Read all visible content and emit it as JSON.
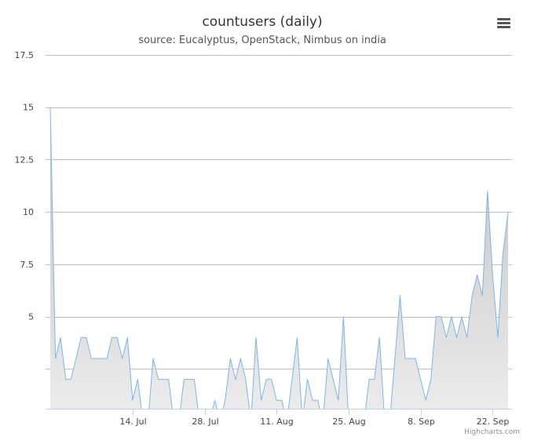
{
  "chart_data": {
    "type": "area",
    "title": "countusers (daily)",
    "subtitle": "source: Eucalyptus, OpenStack, Nimbus on india",
    "xlabel": "",
    "ylabel": "",
    "x_start": "2014-06-28",
    "x_step_days": 1,
    "x_tick_labels": [
      "14. Jul",
      "28. Jul",
      "11. Aug",
      "25. Aug",
      "8. Sep",
      "22. Sep"
    ],
    "x_tick_dates": [
      "2014-07-14",
      "2014-07-28",
      "2014-08-11",
      "2014-08-25",
      "2014-09-08",
      "2014-09-22"
    ],
    "y_tick_labels": [
      "5",
      "7.5",
      "10",
      "12.5",
      "15",
      "17.5"
    ],
    "y_ticks": [
      2.5,
      5,
      7.5,
      10,
      12.5,
      15,
      17.5
    ],
    "ylim": [
      0.6,
      17.5
    ],
    "grid": true,
    "legend": "none",
    "series": [
      {
        "values": [
          15,
          3,
          4,
          2,
          2,
          3,
          4,
          4,
          3,
          3,
          3,
          3,
          4,
          4,
          3,
          4,
          1,
          2,
          0,
          0,
          3,
          2,
          2,
          2,
          0,
          0,
          2,
          2,
          2,
          0,
          0,
          0,
          1,
          0,
          1,
          3,
          2,
          3,
          2,
          0,
          4,
          1,
          2,
          2,
          1,
          1,
          0,
          2,
          4,
          0,
          2,
          1,
          1,
          0,
          3,
          2,
          1,
          5,
          0,
          0,
          0,
          0,
          2,
          2,
          4,
          0,
          0,
          3,
          6,
          3,
          3,
          3,
          2,
          1,
          2,
          5,
          5,
          4,
          5,
          4,
          5,
          4,
          6,
          7,
          6,
          11,
          7,
          4,
          8,
          10
        ]
      }
    ]
  },
  "colors": {
    "line": "#7cb5ec",
    "fill_top": "#bfbfbf",
    "fill_bottom": "#f2f2f2",
    "grid": "#c0c0c0",
    "axis": "#c0d0e0"
  },
  "menu": {
    "icon": "hamburger-menu-icon"
  },
  "credits": "Highcharts.com"
}
